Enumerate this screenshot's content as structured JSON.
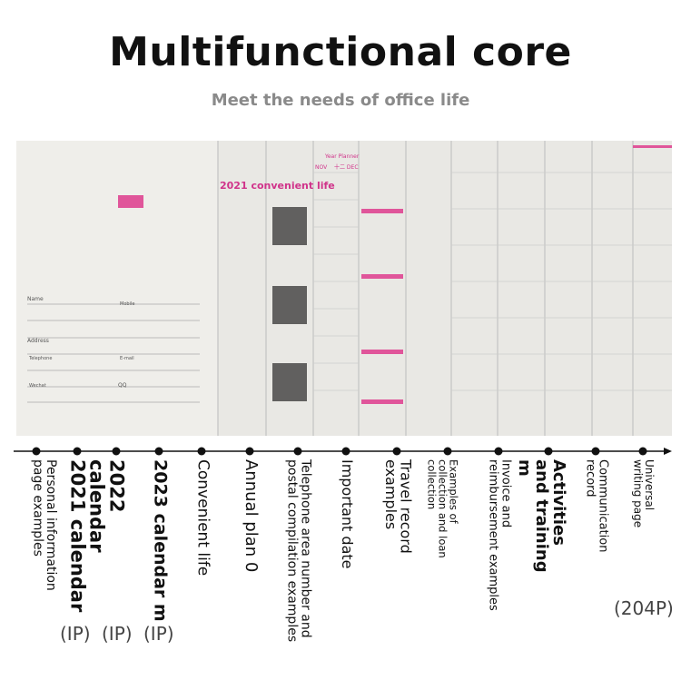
{
  "header": {
    "title": "Multifunctional core",
    "subtitle": "Meet the needs of office life"
  },
  "photo": {
    "convenient": "2021 convenient life",
    "planner": "Year Planner",
    "nov": "NOV",
    "dec": "十二 DEC",
    "fields": [
      "Name",
      "Mobile",
      "Address",
      "Telephone",
      "E-mail",
      "Wechat",
      "QQ"
    ]
  },
  "timeline": {
    "items": [
      "Personal information page examples",
      "2021 calendar",
      "2022 calendar",
      "2023 calendar m",
      "Convenient life",
      "Annual plan 0",
      "Telephone area number and postal compilation examples",
      "Important date",
      "Travel record examples",
      "Examples of collection and loan collection",
      "Invoice and reimbursement examples",
      "Activities and training m",
      "Communication record",
      "Universal writing page"
    ],
    "ip_marks": [
      "(IP)",
      "(IP)",
      "(IP)"
    ],
    "page_count": "(204P)"
  }
}
